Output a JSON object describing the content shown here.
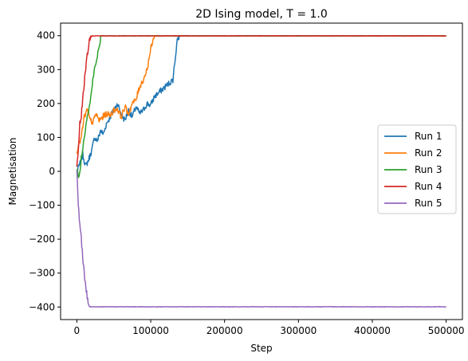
{
  "chart_data": {
    "type": "line",
    "title": "2D Ising model, T = 1.0",
    "xlabel": "Step",
    "ylabel": "Magnetisation",
    "xlim": [
      -22000,
      522000
    ],
    "ylim": [
      -437,
      437
    ],
    "xticks": [
      0,
      100000,
      200000,
      300000,
      400000,
      500000
    ],
    "xtick_labels": [
      "0",
      "100000",
      "200000",
      "300000",
      "400000",
      "500000"
    ],
    "yticks": [
      -400,
      -300,
      -200,
      -100,
      0,
      100,
      200,
      300,
      400
    ],
    "ytick_labels": [
      "−400",
      "−300",
      "−200",
      "−100",
      "0",
      "100",
      "200",
      "300",
      "400"
    ],
    "grid": false,
    "legend_position": "center-right",
    "series": [
      {
        "name": "Run 1",
        "color": "#1f77b4",
        "x": [
          0,
          4000,
          8000,
          12000,
          16000,
          20000,
          24000,
          28000,
          32000,
          36000,
          40000,
          45000,
          50000,
          55000,
          60000,
          65000,
          70000,
          75000,
          80000,
          85000,
          90000,
          95000,
          100000,
          105000,
          110000,
          115000,
          120000,
          125000,
          130000,
          133000,
          136000,
          140000,
          150000,
          200000,
          250000,
          300000,
          350000,
          400000,
          450000,
          500000
        ],
        "y": [
          0,
          20,
          50,
          15,
          35,
          60,
          100,
          90,
          120,
          110,
          140,
          160,
          180,
          200,
          170,
          150,
          180,
          160,
          190,
          170,
          180,
          200,
          195,
          220,
          230,
          240,
          250,
          260,
          270,
          330,
          390,
          400,
          400,
          400,
          400,
          400,
          400,
          400,
          400,
          400
        ]
      },
      {
        "name": "Run 2",
        "color": "#ff7f0e",
        "x": [
          0,
          3000,
          6000,
          10000,
          14000,
          18000,
          22000,
          26000,
          30000,
          35000,
          40000,
          45000,
          50000,
          55000,
          60000,
          65000,
          70000,
          75000,
          80000,
          85000,
          90000,
          95000,
          100000,
          105000,
          110000,
          150000,
          200000,
          300000,
          400000,
          500000
        ],
        "y": [
          60,
          80,
          100,
          160,
          180,
          150,
          145,
          170,
          150,
          160,
          170,
          165,
          180,
          185,
          160,
          190,
          170,
          200,
          210,
          250,
          270,
          300,
          360,
          398,
          400,
          400,
          400,
          400,
          400,
          400
        ]
      },
      {
        "name": "Run 3",
        "color": "#2ca02c",
        "x": [
          0,
          3000,
          6000,
          9000,
          12000,
          15000,
          18000,
          21000,
          24000,
          27000,
          30000,
          33000,
          40000,
          100000,
          200000,
          300000,
          400000,
          500000
        ],
        "y": [
          0,
          -20,
          40,
          90,
          130,
          170,
          200,
          260,
          300,
          330,
          370,
          400,
          400,
          400,
          400,
          400,
          400,
          400
        ]
      },
      {
        "name": "Run 4",
        "color": "#d62728",
        "x": [
          0,
          2000,
          4000,
          6000,
          8000,
          10000,
          12000,
          14000,
          16000,
          18000,
          20000,
          22000,
          30000,
          100000,
          200000,
          300000,
          400000,
          500000
        ],
        "y": [
          20,
          60,
          140,
          160,
          220,
          260,
          300,
          340,
          370,
          395,
          400,
          400,
          400,
          400,
          400,
          400,
          400,
          400
        ]
      },
      {
        "name": "Run 5",
        "color": "#9467bd",
        "x": [
          0,
          2000,
          4000,
          6000,
          8000,
          10000,
          12000,
          14000,
          16000,
          18000,
          20000,
          25000,
          50000,
          100000,
          200000,
          300000,
          400000,
          500000
        ],
        "y": [
          0,
          -100,
          -160,
          -200,
          -250,
          -300,
          -340,
          -370,
          -390,
          -400,
          -400,
          -400,
          -400,
          -400,
          -400,
          -400,
          -400,
          -400
        ]
      }
    ]
  }
}
